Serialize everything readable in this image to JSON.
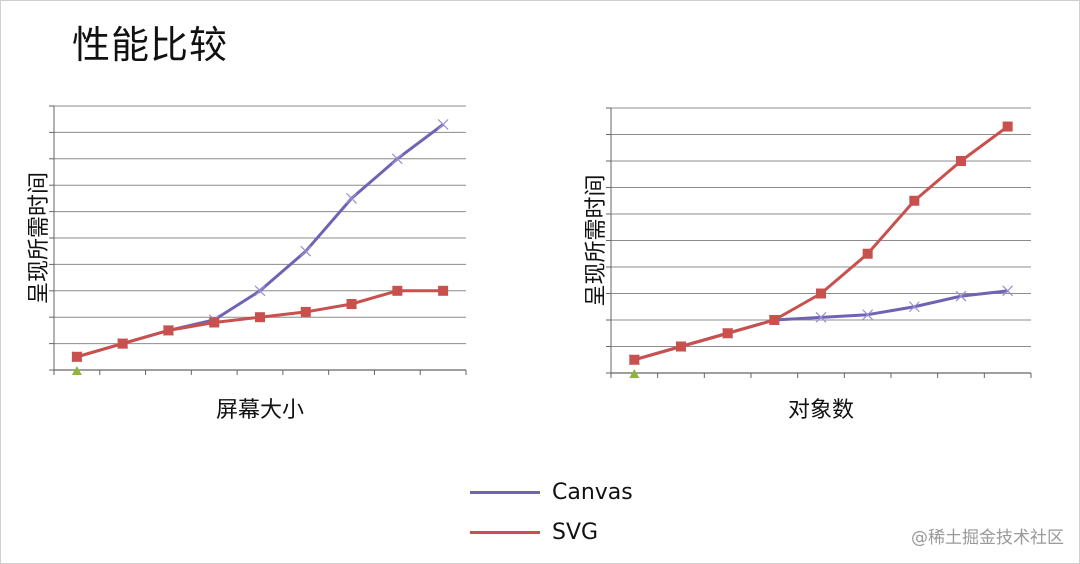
{
  "title": "性能比较",
  "chart_data": [
    {
      "type": "line",
      "ylabel": "呈现所需时间",
      "xlabel": "屏幕大小",
      "ylim": [
        0,
        10
      ],
      "x": [
        1,
        2,
        3,
        4,
        5,
        6,
        7,
        8,
        9
      ],
      "series": [
        {
          "name": "Canvas",
          "color": "#7063b4",
          "marker": "x",
          "values": [
            0.5,
            1.0,
            1.5,
            1.9,
            3.0,
            4.5,
            6.5,
            8.0,
            9.3
          ]
        },
        {
          "name": "SVG",
          "color": "#c8504d",
          "marker": "square",
          "values": [
            0.5,
            1.0,
            1.5,
            1.8,
            2.0,
            2.2,
            2.5,
            3.0,
            3.0
          ]
        }
      ]
    },
    {
      "type": "line",
      "ylabel": "呈现所需时间",
      "xlabel": "对象数",
      "ylim": [
        0,
        10
      ],
      "x": [
        1,
        2,
        3,
        4,
        5,
        6,
        7,
        8,
        9
      ],
      "series": [
        {
          "name": "Canvas",
          "color": "#7063b4",
          "marker": "x",
          "values": [
            0.5,
            1.0,
            1.5,
            2.0,
            2.1,
            2.2,
            2.5,
            2.9,
            3.1
          ]
        },
        {
          "name": "SVG",
          "color": "#c8504d",
          "marker": "square",
          "values": [
            0.5,
            1.0,
            1.5,
            2.0,
            3.0,
            4.5,
            6.5,
            8.0,
            9.3
          ]
        }
      ]
    }
  ],
  "legend": [
    {
      "label": "Canvas",
      "color": "#7063b4"
    },
    {
      "label": "SVG",
      "color": "#c8504d"
    }
  ],
  "watermark": "@稀土掘金技术社区"
}
